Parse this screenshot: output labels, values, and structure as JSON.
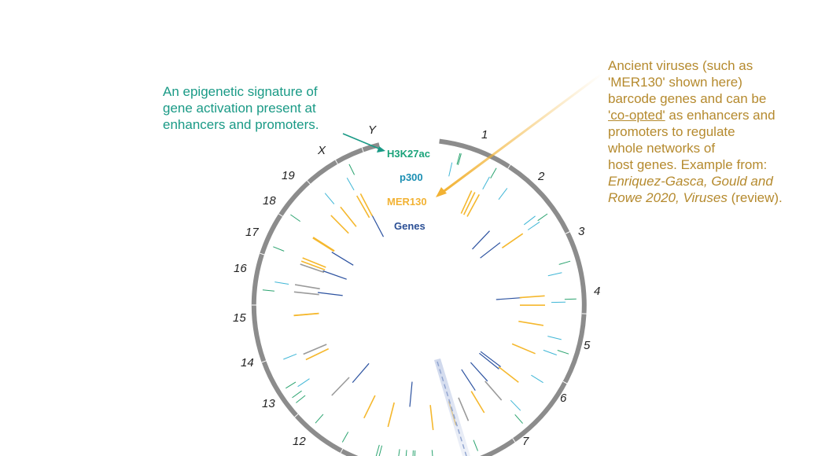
{
  "left_annotation": {
    "line1": "An epigenetic signature of",
    "line2": "gene activation present at",
    "line3": "enhancers and promoters."
  },
  "right_annotation": {
    "line1": "Ancient viruses (such as",
    "line2": "'MER130' shown here)",
    "line3": "barcode genes and can be",
    "line4_link": "'co-opted'",
    "line4_rest": " as enhancers and",
    "line5": "promoters to regulate",
    "line6": "whole networks of",
    "line7": "host genes. Example from:",
    "line8": "Enriquez-Gasca, Gould and",
    "line9_italic": "Rowe 2020, Viruses",
    "line9_rest": " (review)."
  },
  "tracks": [
    {
      "label": "H3K27ac",
      "color": "#1aa37a"
    },
    {
      "label": "p300",
      "color": "#1b8fb3"
    },
    {
      "label": "MER130",
      "color": "#f2b233"
    },
    {
      "label": "Genes",
      "color": "#2b4f95"
    }
  ],
  "chromosomes": [
    "1",
    "2",
    "3",
    "4",
    "5",
    "6",
    "7",
    "12",
    "13",
    "14",
    "15",
    "16",
    "17",
    "18",
    "19",
    "X",
    "Y"
  ],
  "colors": {
    "ring": "#8c8c8c",
    "h3k27ac": "#2aa36f",
    "p300": "#3fb6d6",
    "mer130": "#f5b82e",
    "genes": "#2c52a0",
    "gray": "#9a9a9a",
    "left_text": "#1a9a86",
    "right_text": "#b58a2e",
    "arrow": "#f2b233"
  }
}
